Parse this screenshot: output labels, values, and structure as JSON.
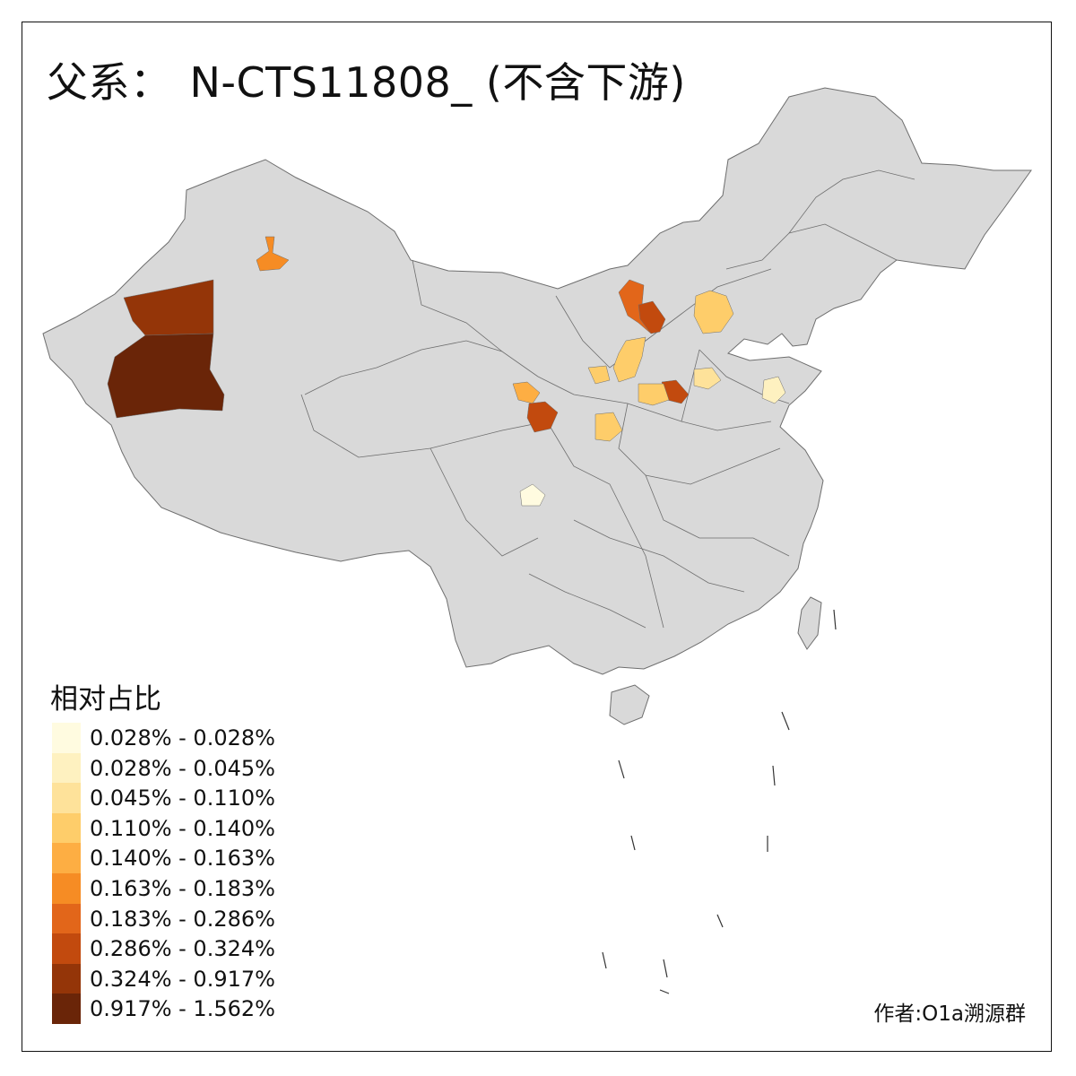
{
  "title": {
    "prefix": "父系：",
    "main": "N-CTS11808_ (不含下游)"
  },
  "legend": {
    "title": "相对占比",
    "classes": [
      {
        "label": "0.028% - 0.028%",
        "color": "#FFFBE0"
      },
      {
        "label": "0.028% - 0.045%",
        "color": "#FEF1C0"
      },
      {
        "label": "0.045% - 0.110%",
        "color": "#FEE29A"
      },
      {
        "label": "0.110% - 0.140%",
        "color": "#FECD6A"
      },
      {
        "label": "0.140% - 0.163%",
        "color": "#FDAE43"
      },
      {
        "label": "0.163% - 0.183%",
        "color": "#F68C24"
      },
      {
        "label": "0.183% - 0.286%",
        "color": "#E2661A"
      },
      {
        "label": "0.286% - 0.324%",
        "color": "#C24A0E"
      },
      {
        "label": "0.324% - 0.917%",
        "color": "#943508"
      },
      {
        "label": "0.917% - 1.562%",
        "color": "#6A2508"
      }
    ]
  },
  "map": {
    "base_fill": "#D9D9D9",
    "border_color": "#6E6E6E",
    "highlighted_regions": [
      {
        "name": "northwest-xinjiang-upper",
        "class_index": 8
      },
      {
        "name": "southwest-xinjiang-lower",
        "class_index": 9
      },
      {
        "name": "north-xinjiang-spot",
        "class_index": 5
      },
      {
        "name": "inner-mongolia-north",
        "class_index": 6
      },
      {
        "name": "inner-mongolia-south",
        "class_index": 7
      },
      {
        "name": "hebei-north",
        "class_index": 3
      },
      {
        "name": "shaanxi-north",
        "class_index": 3
      },
      {
        "name": "shanxi-east",
        "class_index": 7
      },
      {
        "name": "shanxi-west",
        "class_index": 3
      },
      {
        "name": "gansu-east",
        "class_index": 4
      },
      {
        "name": "gansu-south",
        "class_index": 7
      },
      {
        "name": "shaanxi-south",
        "class_index": 3
      },
      {
        "name": "hebei-south",
        "class_index": 2
      },
      {
        "name": "shandong-west",
        "class_index": 1
      },
      {
        "name": "sichuan-center",
        "class_index": 0
      },
      {
        "name": "ningxia-spot",
        "class_index": 3
      }
    ]
  },
  "author": "作者:O1a溯源群"
}
